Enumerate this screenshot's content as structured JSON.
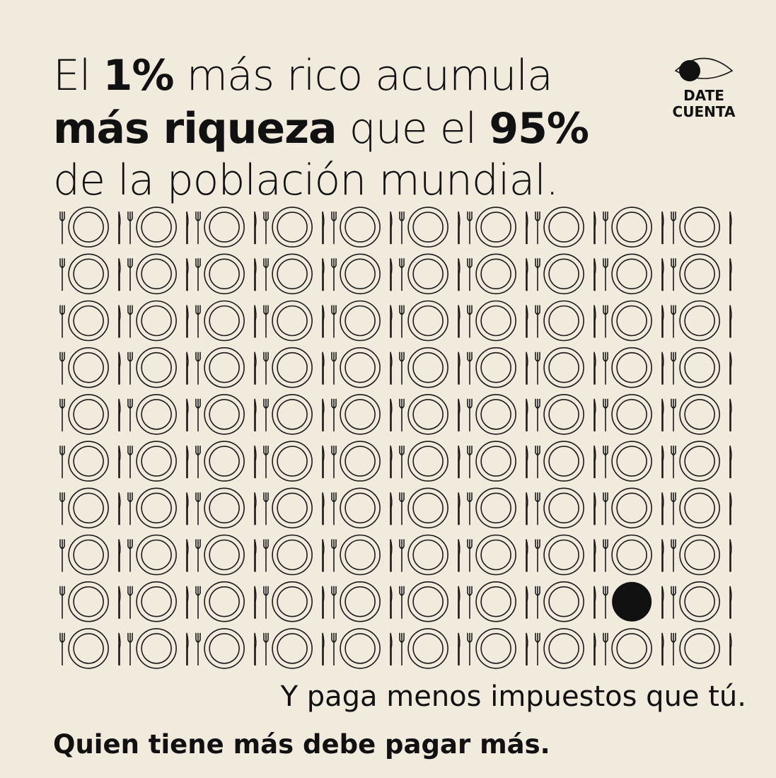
{
  "header": {
    "title_lines": [
      [
        "El ",
        "1%",
        " más rico acumula"
      ],
      [
        "más riqueza",
        " que el ",
        "95%"
      ],
      [
        "de la población mundial."
      ]
    ]
  },
  "logo": {
    "lines": [
      "DATE",
      "CUENTA"
    ]
  },
  "plate_grid": {
    "rows": 10,
    "columns": 10,
    "filled": [
      [
        8,
        8
      ]
    ]
  },
  "footer": {
    "line_1": "Y paga menos impuestos que tú.",
    "line_2": "Quien tiene más debe pagar más."
  }
}
